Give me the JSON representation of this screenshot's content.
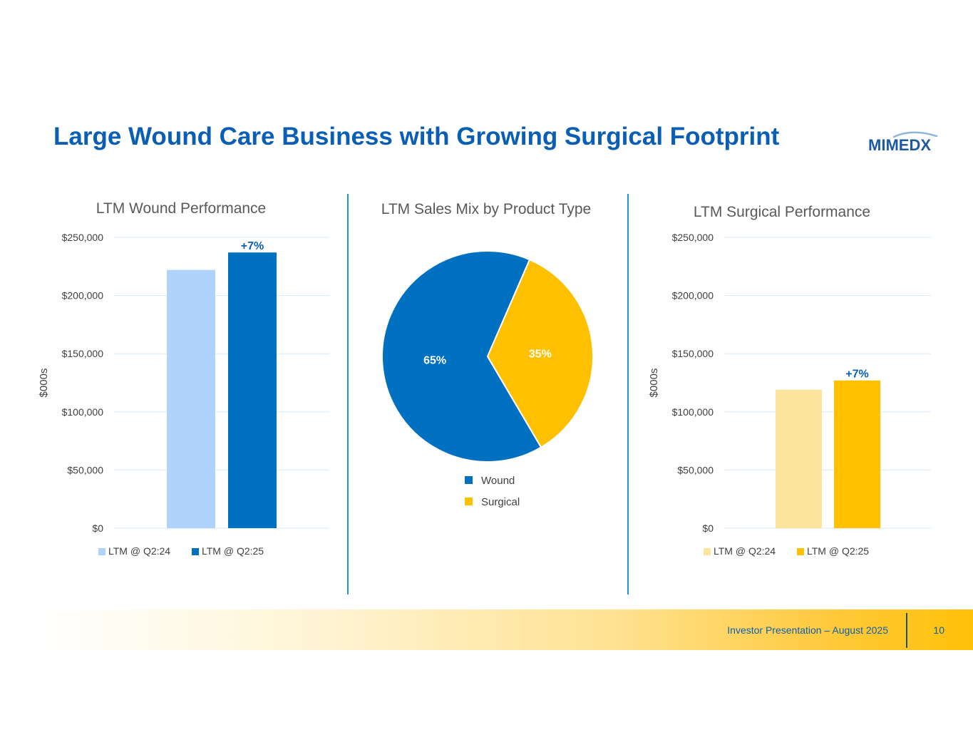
{
  "page": {
    "title": "Large Wound Care Business with Growing Surgical Footprint",
    "logo_text": "MIMEDX"
  },
  "footer": {
    "text": "Investor Presentation – August 2025",
    "page_number": "10"
  },
  "colors": {
    "title_blue": "#0a5fb4",
    "wound_light": "#afd3fc",
    "wound_dark": "#0070c0",
    "surgical_light": "#fce59b",
    "surgical_dark": "#ffc000",
    "grid": "#d6e9f8",
    "divider": "#1e95d3"
  },
  "chart_data": [
    {
      "type": "bar",
      "title": "LTM Wound Performance",
      "ylabel": "$000s",
      "ylim": [
        0,
        250000
      ],
      "yticks": [
        "$0",
        "$50,000",
        "$100,000",
        "$150,000",
        "$200,000",
        "$250,000"
      ],
      "categories": [
        "LTM @ Q2:24",
        "LTM @ Q2:25"
      ],
      "values": [
        222000,
        237000
      ],
      "bar_colors": [
        "#afd3fc",
        "#0070c0"
      ],
      "annotation": "+7%",
      "legend": [
        "LTM @ Q2:24",
        "LTM @ Q2:25"
      ],
      "legend_position": "bottom",
      "grid": true
    },
    {
      "type": "pie",
      "title": "LTM Sales Mix by Product Type",
      "categories": [
        "Wound",
        "Surgical"
      ],
      "values": [
        65,
        35
      ],
      "labels": [
        "65%",
        "35%"
      ],
      "slice_colors": [
        "#0070c0",
        "#ffc000"
      ],
      "legend": [
        "Wound",
        "Surgical"
      ],
      "legend_position": "bottom"
    },
    {
      "type": "bar",
      "title": "LTM Surgical Performance",
      "ylabel": "$000s",
      "ylim": [
        0,
        250000
      ],
      "yticks": [
        "$0",
        "$50,000",
        "$100,000",
        "$150,000",
        "$200,000",
        "$250,000"
      ],
      "categories": [
        "LTM @ Q2:24",
        "LTM @ Q2:25"
      ],
      "values": [
        119000,
        127000
      ],
      "bar_colors": [
        "#fce59b",
        "#ffc000"
      ],
      "annotation": "+7%",
      "legend": [
        "LTM @ Q2:24",
        "LTM @ Q2:25"
      ],
      "legend_position": "bottom",
      "grid": true
    }
  ]
}
